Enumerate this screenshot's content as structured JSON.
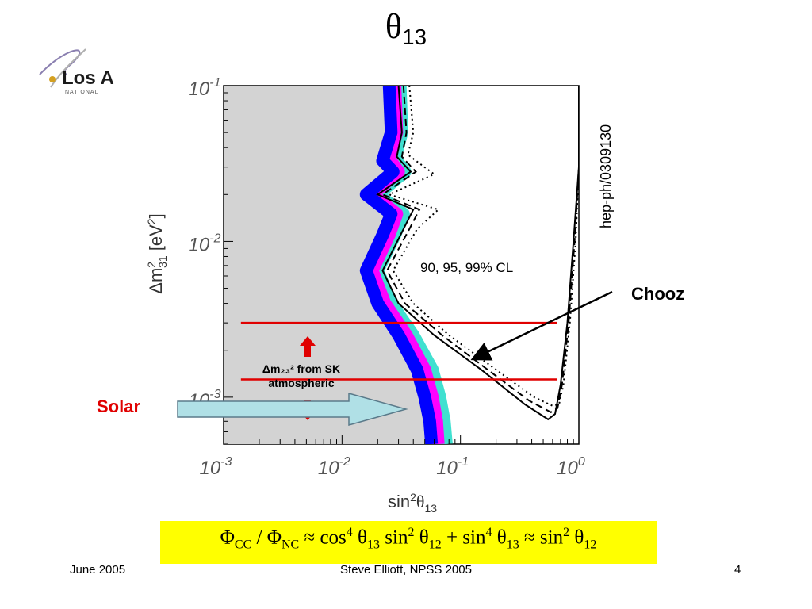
{
  "slide": {
    "title_main": "θ",
    "title_sub": "13",
    "logo_text": "Los A",
    "logo_subtext": "NATIONAL"
  },
  "annotations": {
    "preprint": "hep-ph/0309130",
    "cl_label": "90, 95, 99% CL",
    "chooz": "Chooz",
    "solar": "Solar",
    "sk_line1": "Δm₂₃² from SK",
    "sk_line2": "atmospheric"
  },
  "formula": {
    "phi_cc": "Φ",
    "cc": "CC",
    "slash": " / ",
    "phi_nc": "Φ",
    "nc": "NC",
    "approx1": " ≈ cos",
    "p4a": "4",
    "theta13a": " θ",
    "s13a": "13",
    "sin1": " sin",
    "p2a": "2",
    "theta12a": " θ",
    "s12a": "12",
    "plus": " + sin",
    "p4b": "4",
    "theta13b": " θ",
    "s13b": "13",
    "approx2": " ≈ sin",
    "p2b": "2",
    "theta12b": " θ",
    "s12b": "12"
  },
  "footer": {
    "date": "June 2005",
    "author": "Steve Elliott, NPSS 2005",
    "page": "4"
  },
  "colors": {
    "excluded_region": "#d3d3d3",
    "band_90": "#0000ff",
    "band_95": "#ff00ff",
    "band_99": "#40e0d0",
    "sk_lines": "#e00000",
    "solar_arrow": "#b0e0e6",
    "formula_bg": "#ffff00"
  },
  "chart_data": {
    "type": "line",
    "title": "",
    "xlabel": "sin²θ₁₃",
    "ylabel": "Δm²₃₁ [eV²]",
    "x_scale": "log",
    "y_scale": "log",
    "xlim": [
      0.001,
      1
    ],
    "ylim": [
      0.0005,
      0.1
    ],
    "x_ticks": [
      "10",
      "10",
      "10",
      "10"
    ],
    "x_tick_exps": [
      "-3",
      "-2",
      "-1",
      "0"
    ],
    "y_ticks": [
      "10",
      "10",
      "10"
    ],
    "y_tick_exps": [
      "-1",
      "-2",
      "-3"
    ],
    "y_tick_values": [
      0.1,
      0.01,
      0.001
    ],
    "x_tick_values": [
      0.001,
      0.01,
      0.1,
      1
    ],
    "sk_band": [
      0.0013,
      0.003
    ],
    "series": [
      {
        "style": "band",
        "color": "#0000ff",
        "points": [
          [
            0.025,
            0.1
          ],
          [
            0.026,
            0.05
          ],
          [
            0.022,
            0.033
          ],
          [
            0.027,
            0.028
          ],
          [
            0.016,
            0.02
          ],
          [
            0.026,
            0.015
          ],
          [
            0.022,
            0.011
          ],
          [
            0.016,
            0.0065
          ],
          [
            0.02,
            0.004
          ],
          [
            0.03,
            0.0025
          ],
          [
            0.043,
            0.0015
          ],
          [
            0.05,
            0.001
          ],
          [
            0.055,
            0.0007
          ],
          [
            0.057,
            0.0005
          ]
        ]
      },
      {
        "style": "band",
        "color": "#ff00ff",
        "points": [
          [
            0.028,
            0.1
          ],
          [
            0.029,
            0.05
          ],
          [
            0.025,
            0.034
          ],
          [
            0.03,
            0.028
          ],
          [
            0.018,
            0.02
          ],
          [
            0.029,
            0.015
          ],
          [
            0.025,
            0.011
          ],
          [
            0.018,
            0.0065
          ],
          [
            0.023,
            0.004
          ],
          [
            0.035,
            0.0025
          ],
          [
            0.05,
            0.0015
          ],
          [
            0.058,
            0.001
          ],
          [
            0.063,
            0.0007
          ],
          [
            0.065,
            0.0005
          ]
        ]
      },
      {
        "style": "band",
        "color": "#40e0d0",
        "points": [
          [
            0.031,
            0.1
          ],
          [
            0.032,
            0.05
          ],
          [
            0.028,
            0.034
          ],
          [
            0.034,
            0.028
          ],
          [
            0.02,
            0.02
          ],
          [
            0.033,
            0.015
          ],
          [
            0.028,
            0.011
          ],
          [
            0.02,
            0.0065
          ],
          [
            0.026,
            0.004
          ],
          [
            0.04,
            0.0025
          ],
          [
            0.058,
            0.0015
          ],
          [
            0.067,
            0.001
          ],
          [
            0.073,
            0.0007
          ],
          [
            0.076,
            0.0005
          ]
        ]
      },
      {
        "style": "solid",
        "color": "#000000",
        "points": [
          [
            0.03,
            0.1
          ],
          [
            0.032,
            0.05
          ],
          [
            0.029,
            0.035
          ],
          [
            0.038,
            0.028
          ],
          [
            0.02,
            0.02
          ],
          [
            0.04,
            0.016
          ],
          [
            0.033,
            0.012
          ],
          [
            0.022,
            0.0065
          ],
          [
            0.03,
            0.004
          ],
          [
            0.06,
            0.0025
          ],
          [
            0.15,
            0.0015
          ],
          [
            0.35,
            0.0009
          ],
          [
            0.55,
            0.00072
          ],
          [
            0.63,
            0.00078
          ],
          [
            0.7,
            0.0012
          ],
          [
            0.8,
            0.003
          ],
          [
            0.9,
            0.01
          ],
          [
            1.0,
            0.03
          ],
          [
            1.0,
            0.1
          ]
        ]
      },
      {
        "style": "dashed",
        "color": "#000000",
        "points": [
          [
            0.033,
            0.1
          ],
          [
            0.035,
            0.05
          ],
          [
            0.032,
            0.035
          ],
          [
            0.042,
            0.028
          ],
          [
            0.022,
            0.02
          ],
          [
            0.045,
            0.016
          ],
          [
            0.037,
            0.012
          ],
          [
            0.024,
            0.0065
          ],
          [
            0.034,
            0.004
          ],
          [
            0.07,
            0.0025
          ],
          [
            0.17,
            0.0015
          ],
          [
            0.38,
            0.00095
          ],
          [
            0.58,
            0.0008
          ],
          [
            0.66,
            0.00085
          ],
          [
            0.72,
            0.0012
          ],
          [
            0.82,
            0.003
          ],
          [
            0.92,
            0.01
          ],
          [
            1.0,
            0.03
          ],
          [
            1.0,
            0.1
          ]
        ]
      },
      {
        "style": "dotted",
        "color": "#000000",
        "points": [
          [
            0.037,
            0.1
          ],
          [
            0.04,
            0.05
          ],
          [
            0.036,
            0.036
          ],
          [
            0.06,
            0.027
          ],
          [
            0.025,
            0.02
          ],
          [
            0.065,
            0.016
          ],
          [
            0.043,
            0.012
          ],
          [
            0.027,
            0.0065
          ],
          [
            0.04,
            0.004
          ],
          [
            0.08,
            0.0025
          ],
          [
            0.2,
            0.0015
          ],
          [
            0.42,
            0.001
          ],
          [
            0.6,
            0.00088
          ],
          [
            0.68,
            0.0009
          ],
          [
            0.74,
            0.0012
          ],
          [
            0.84,
            0.003
          ],
          [
            0.94,
            0.01
          ],
          [
            1.0,
            0.03
          ],
          [
            1.0,
            0.1
          ]
        ]
      }
    ]
  }
}
